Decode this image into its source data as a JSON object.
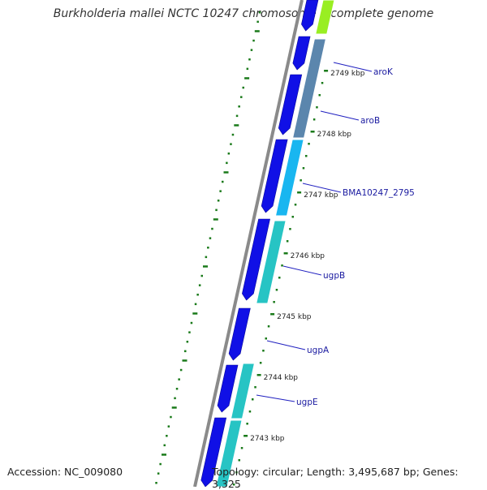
{
  "title": "Burkholderia mallei NCTC 10247 chromosome I, complete genome",
  "accession": "Accession: NC_009080",
  "topology": "Topology: circular; Length: 3,495,687 bp; Genes: 3,325",
  "ticks": [
    {
      "label": "2749 kbp",
      "kbp": 2749
    },
    {
      "label": "2748 kbp",
      "kbp": 2748
    },
    {
      "label": "2747 kbp",
      "kbp": 2747
    },
    {
      "label": "2746 kbp",
      "kbp": 2746
    },
    {
      "label": "2745 kbp",
      "kbp": 2745
    },
    {
      "label": "2744 kbp",
      "kbp": 2744
    },
    {
      "label": "2743 kbp",
      "kbp": 2743
    }
  ],
  "genes": [
    {
      "name": "aroK"
    },
    {
      "name": "aroB"
    },
    {
      "name": "BMA10247_2795"
    },
    {
      "name": "ugpB"
    },
    {
      "name": "ugpA"
    },
    {
      "name": "ugpE"
    }
  ],
  "colors": {
    "backbone": "#8a8a8a",
    "forward_cds": "#1010e6",
    "tick": "#1a7a1a",
    "label": "#1a1aa0",
    "aroK": "#5b86ad",
    "aroB": "#5b86ad",
    "BMA10247_2795": "#19b6f0",
    "ugpB": "#27c4c4",
    "ugpA": "#27c4c4",
    "ugpE": "#27c4c4",
    "topGene": "#99ee22"
  }
}
